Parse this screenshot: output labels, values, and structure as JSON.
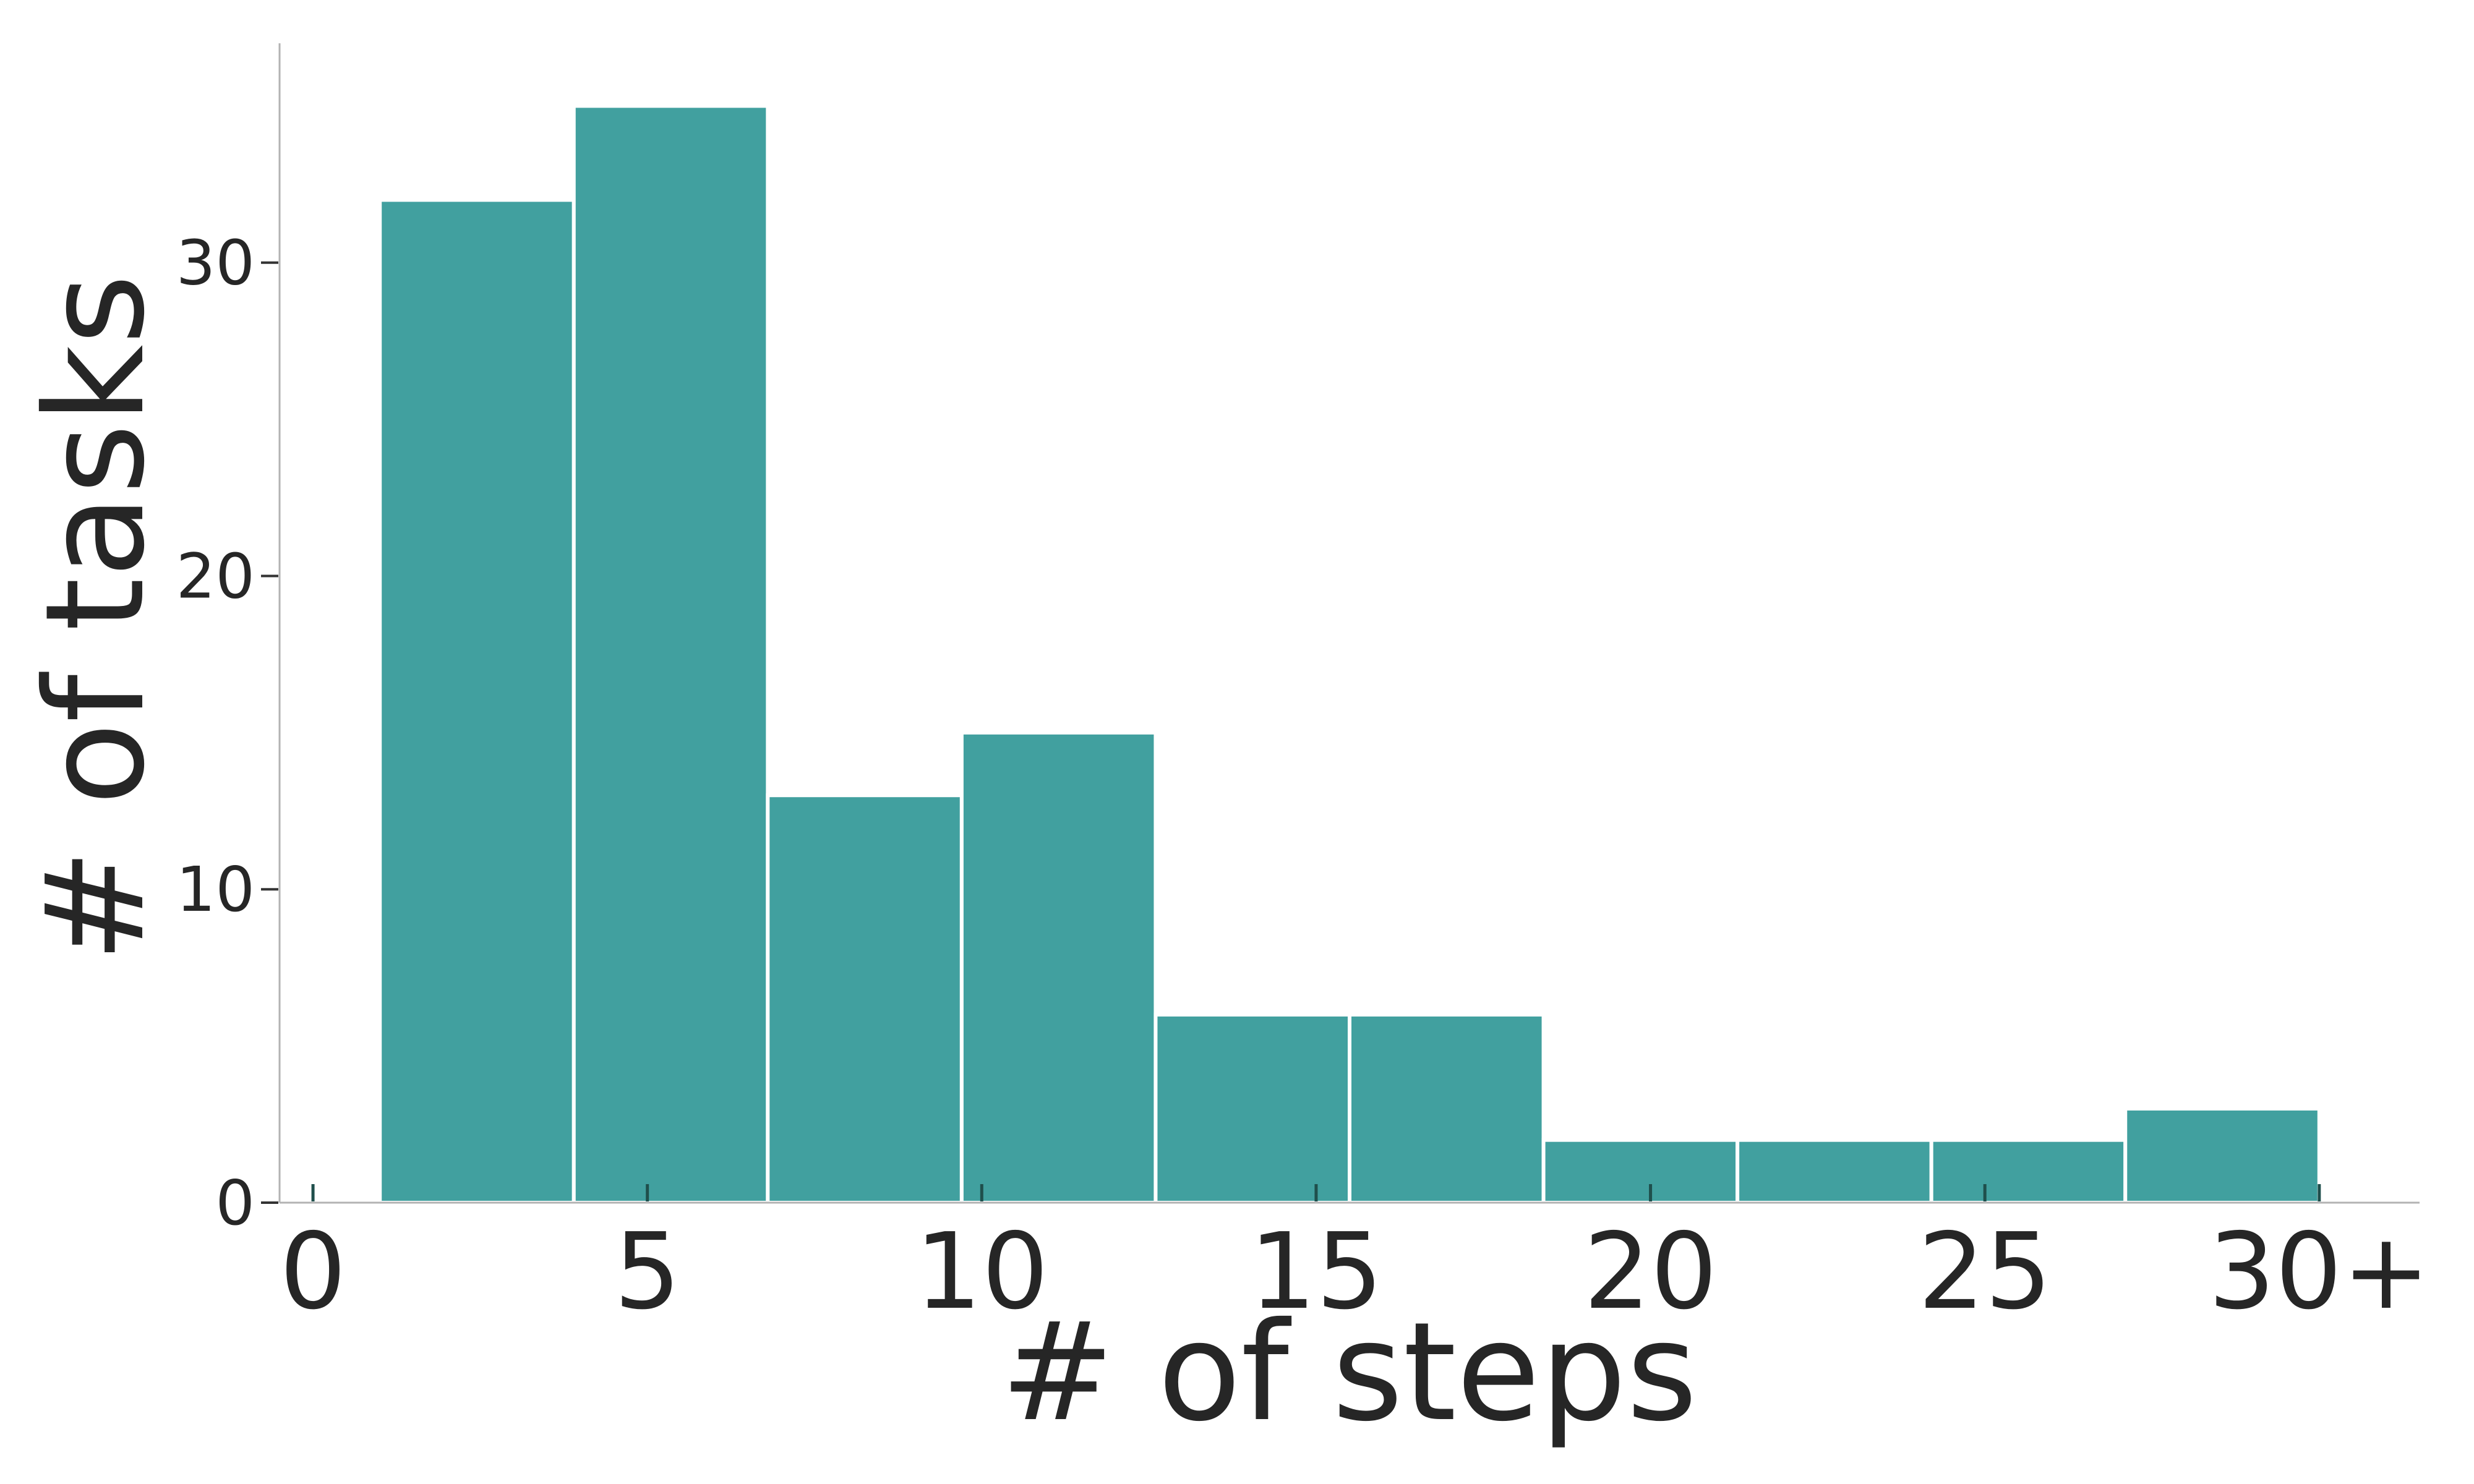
{
  "chart_data": {
    "type": "bar",
    "title": "",
    "xlabel": "# of steps",
    "ylabel": "# of tasks",
    "xlim": [
      -0.5,
      31.5
    ],
    "ylim": [
      0,
      37
    ],
    "grid": false,
    "bar_color": "#41a09f",
    "x_ticks": [
      {
        "value": 0,
        "label": "0"
      },
      {
        "value": 5,
        "label": "5"
      },
      {
        "value": 10,
        "label": "10"
      },
      {
        "value": 15,
        "label": "15"
      },
      {
        "value": 20,
        "label": "20"
      },
      {
        "value": 25,
        "label": "25"
      },
      {
        "value": 30,
        "label": "30+"
      }
    ],
    "y_ticks": [
      {
        "value": 0,
        "label": "0"
      },
      {
        "value": 10,
        "label": "10"
      },
      {
        "value": 20,
        "label": "20"
      },
      {
        "value": 30,
        "label": "30"
      }
    ],
    "bins": [
      {
        "start": 1.0,
        "end": 3.9,
        "value": 32
      },
      {
        "start": 3.9,
        "end": 6.8,
        "value": 35
      },
      {
        "start": 6.8,
        "end": 9.7,
        "value": 13
      },
      {
        "start": 9.7,
        "end": 12.6,
        "value": 15
      },
      {
        "start": 12.6,
        "end": 15.5,
        "value": 6
      },
      {
        "start": 15.5,
        "end": 18.4,
        "value": 6
      },
      {
        "start": 18.4,
        "end": 21.3,
        "value": 2
      },
      {
        "start": 21.3,
        "end": 24.2,
        "value": 2
      },
      {
        "start": 24.2,
        "end": 27.1,
        "value": 2
      },
      {
        "start": 27.1,
        "end": 30.0,
        "value": 3
      }
    ]
  }
}
